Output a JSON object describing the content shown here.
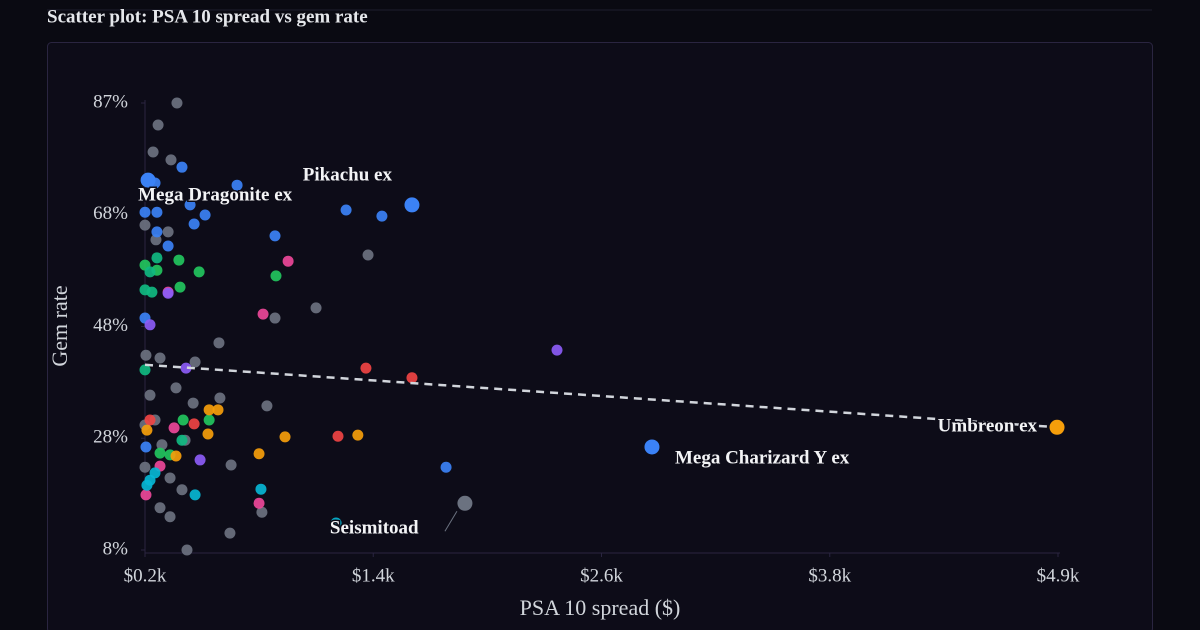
{
  "chart_data": {
    "type": "scatter",
    "title": "Scatter plot: PSA 10 spread vs gem rate",
    "x_label": "PSA 10 spread ($)",
    "y_label": "Gem rate",
    "xlim": [
      200,
      4940
    ],
    "xticks": [
      {
        "value": 200,
        "label": "$0.2k"
      },
      {
        "value": 1385,
        "label": "$1.4k"
      },
      {
        "value": 2570,
        "label": "$2.6k"
      },
      {
        "value": 3755,
        "label": "$3.8k"
      },
      {
        "value": 4940,
        "label": "$4.9k"
      }
    ],
    "ylim": [
      8,
      87.4
    ],
    "yticks": [
      {
        "value": 8,
        "label": "8%"
      },
      {
        "value": 27.85,
        "label": "28%"
      },
      {
        "value": 47.7,
        "label": "48%"
      },
      {
        "value": 67.55,
        "label": "68%"
      },
      {
        "value": 87.4,
        "label": "87%"
      }
    ],
    "grid": false,
    "series": [
      {
        "color": "#6b7280",
        "x": [
          366,
          268,
          242,
          335,
          200,
          257,
          320,
          1358,
          1088,
          875,
          584,
          460,
          278,
          205,
          361,
          226,
          450,
          589,
          833,
          200,
          252,
          288,
          408,
          647,
          200,
          330,
          392,
          278,
          330,
          641,
          418,
          807,
          1861
        ],
        "values": [
          87.4,
          83.5,
          78.7,
          77.3,
          65.7,
          63.1,
          64.5,
          60.4,
          51,
          49.2,
          44.8,
          41.4,
          42.1,
          42.6,
          36.8,
          35.5,
          34.1,
          35,
          33.6,
          30.2,
          31.1,
          26.7,
          27.5,
          23.1,
          22.7,
          20.8,
          18.7,
          15.5,
          13.9,
          11,
          8,
          14.7,
          16.3
        ]
      },
      {
        "color": "#3b82f6",
        "x": [
          1586,
          1244,
          1430,
          875,
          678,
          512,
          455,
          434,
          392,
          216,
          252,
          200,
          262,
          320,
          262,
          200,
          2832,
          1763,
          205
        ],
        "values": [
          69.3,
          68.4,
          67.3,
          63.8,
          72.8,
          67.5,
          65.9,
          69.3,
          76,
          73.7,
          73.2,
          68,
          68,
          62,
          64.5,
          49.2,
          26.3,
          22.7,
          26.3
        ]
      },
      {
        "color": "#22c55e",
        "x": [
          200,
          376,
          481,
          880,
          262,
          382,
          398,
          278,
          330,
          533
        ],
        "values": [
          58.6,
          59.5,
          57.4,
          56.7,
          57.7,
          54.7,
          31.1,
          25.2,
          24.9,
          31.1
        ]
      },
      {
        "color": "#10b981",
        "x": [
          200,
          236,
          262,
          200,
          392,
          226
        ],
        "values": [
          54.2,
          53.8,
          59.9,
          40,
          27.5,
          57.4
        ]
      },
      {
        "color": "#ec4899",
        "x": [
          943,
          813,
          320,
          792,
          205,
          278,
          351
        ],
        "values": [
          59.3,
          49.9,
          53.8,
          16.3,
          17.8,
          22.9,
          29.7
        ]
      },
      {
        "color": "#ef4444",
        "x": [
          1347,
          1586,
          1202,
          455,
          226
        ],
        "values": [
          40.3,
          38.6,
          28.2,
          30.4,
          31.1
        ]
      },
      {
        "color": "#f59e0b",
        "x": [
          4935,
          1305,
          927,
          792,
          579,
          533,
          527,
          361,
          210
        ],
        "values": [
          29.8,
          28.4,
          28.1,
          25.1,
          32.9,
          32.9,
          28.6,
          24.7,
          29.3
        ]
      },
      {
        "color": "#8b5cf6",
        "x": [
          2339,
          226,
          413,
          486,
          320
        ],
        "values": [
          43.5,
          48,
          40.3,
          24,
          53.6
        ]
      },
      {
        "color": "#06b6d4",
        "x": [
          1192,
          802,
          460,
          252,
          210,
          226
        ],
        "values": [
          12.8,
          18.8,
          17.8,
          21.7,
          19.5,
          20.4
        ]
      }
    ],
    "trendline": {
      "color": "#d1d5db",
      "x": [
        200,
        4940
      ],
      "values": [
        40.9,
        29.8
      ]
    },
    "annotations": [
      {
        "text": "Pikachu ex",
        "x": 1586,
        "y": 69.3,
        "color": "#3b82f6"
      },
      {
        "text": "Mega Dragonite ex",
        "x": 216,
        "y": 73.7,
        "color": "#3b82f6"
      },
      {
        "text": "Umbreon ex",
        "x": 4935,
        "y": 29.8,
        "color": "#f59e0b"
      },
      {
        "text": "Mega Charizard Y ex",
        "x": 2832,
        "y": 26.3,
        "color": "#3b82f6"
      },
      {
        "text": "Seismitoad",
        "x": 1861,
        "y": 16.3,
        "color": "#6b7280"
      }
    ]
  }
}
